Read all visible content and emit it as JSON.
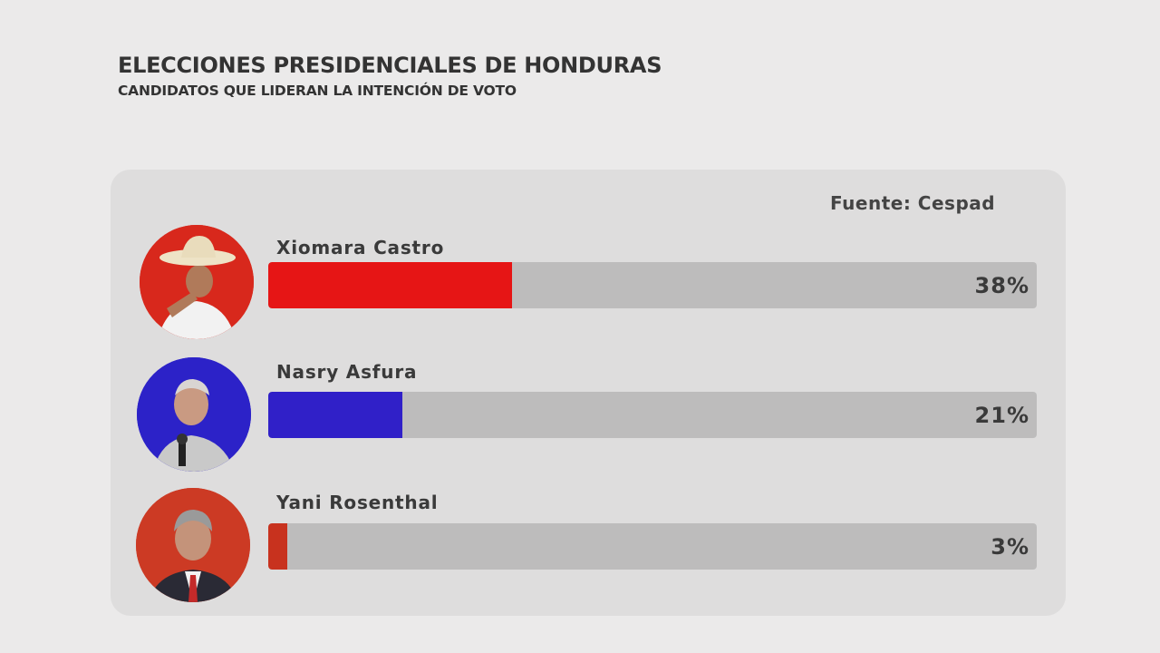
{
  "header": {
    "title": "ELECCIONES PRESIDENCIALES DE HONDURAS",
    "subtitle": "CANDIDATOS QUE LIDERAN LA INTENCIÓN DE VOTO"
  },
  "source": "Fuente: Cespad",
  "chart_data": {
    "type": "bar",
    "orientation": "horizontal",
    "title": "ELECCIONES PRESIDENCIALES DE HONDURAS",
    "subtitle": "CANDIDATOS QUE LIDERAN LA INTENCIÓN DE VOTO",
    "categories": [
      "Xiomara Castro",
      "Nasry Asfura",
      "Yani Rosenthal"
    ],
    "values": [
      38,
      21,
      3
    ],
    "value_labels": [
      "38%",
      "21%",
      "3%"
    ],
    "colors": [
      "#e61515",
      "#3020c8",
      "#c8321e"
    ],
    "avatar_colors": [
      "#d8281c",
      "#2c22c8",
      "#cc3a24"
    ],
    "xlim": [
      0,
      100
    ],
    "unit": "%",
    "grid": false,
    "legend": "none",
    "source": "Fuente: Cespad"
  }
}
